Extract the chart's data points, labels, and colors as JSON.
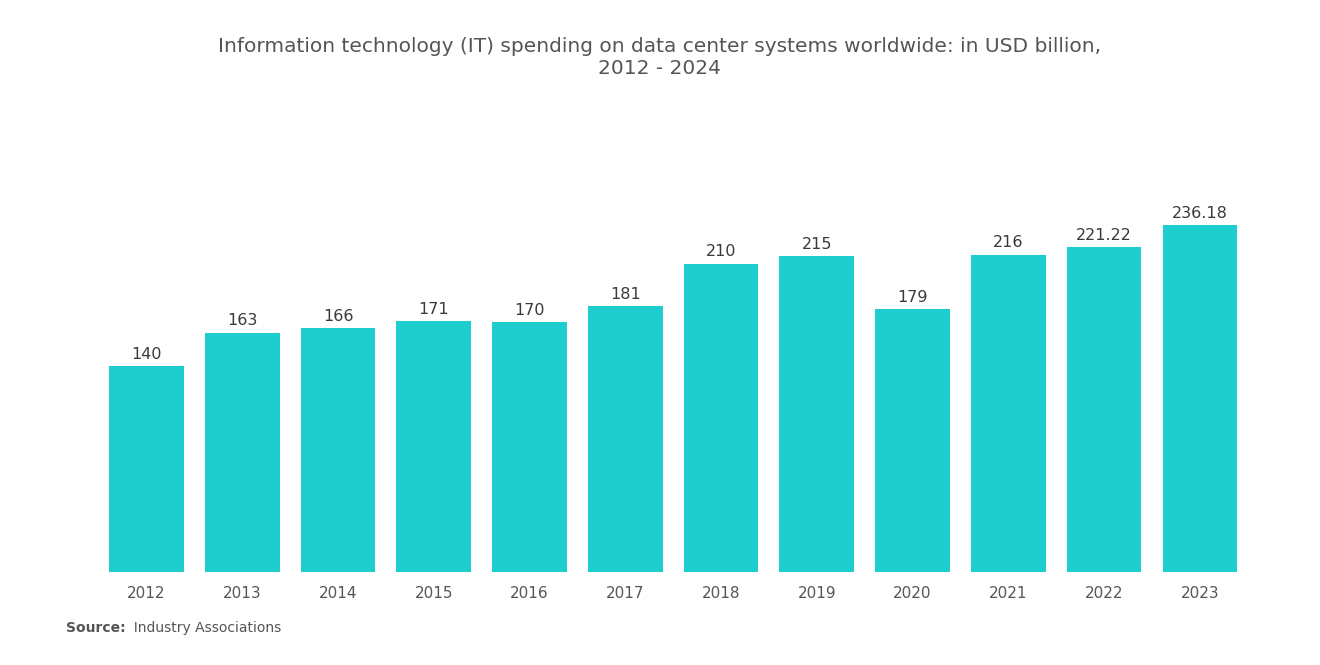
{
  "title": "Information technology (IT) spending on data center systems worldwide: in USD billion,\n2012 - 2024",
  "years": [
    2012,
    2013,
    2014,
    2015,
    2016,
    2017,
    2018,
    2019,
    2020,
    2021,
    2022,
    2023
  ],
  "values": [
    140,
    163,
    166,
    171,
    170,
    181,
    210,
    215,
    179,
    216,
    221.22,
    236.18
  ],
  "labels": [
    "140",
    "163",
    "166",
    "171",
    "170",
    "181",
    "210",
    "215",
    "179",
    "216",
    "221.22",
    "236.18"
  ],
  "bar_color": "#1ECECE",
  "background_color": "#FFFFFF",
  "title_fontsize": 14.5,
  "label_fontsize": 11.5,
  "tick_fontsize": 11,
  "source_bold": "Source:",
  "source_normal": "  Industry Associations",
  "ylim": [
    0,
    290
  ],
  "bar_width": 0.78
}
